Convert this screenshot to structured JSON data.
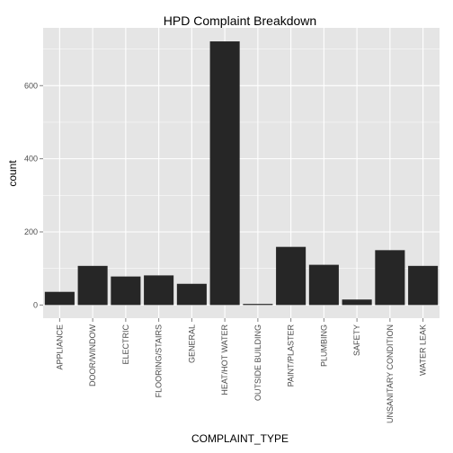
{
  "chart_data": {
    "type": "bar",
    "title": "HPD Complaint Breakdown",
    "xlabel": "COMPLAINT_TYPE",
    "ylabel": "count",
    "categories": [
      "APPLIANCE",
      "DOOR/WINDOW",
      "ELECTRIC",
      "FLOORING/STAIRS",
      "GENERAL",
      "HEAT/HOT WATER",
      "OUTSIDE BUILDING",
      "PAINT/PLASTER",
      "PLUMBING",
      "SAFETY",
      "UNSANITARY CONDITION",
      "WATER LEAK"
    ],
    "values": [
      36,
      107,
      78,
      81,
      58,
      721,
      3,
      159,
      110,
      15,
      150,
      107
    ],
    "yticks": [
      0,
      200,
      400,
      600
    ],
    "ylim": [
      -36,
      758
    ],
    "grid": true,
    "colors": {
      "panel": "#e5e5e5",
      "grid": "#ffffff",
      "bar": "#262626"
    }
  }
}
